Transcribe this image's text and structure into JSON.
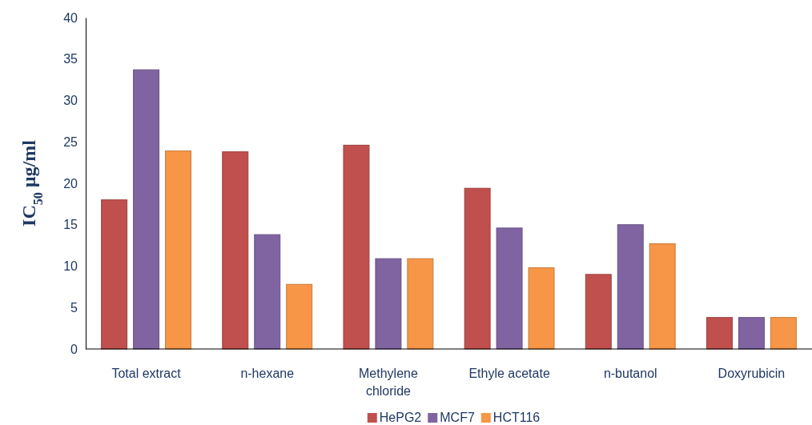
{
  "chart_data": {
    "type": "bar",
    "ylabel": "IC$_{50}$ µg/ml",
    "categories": [
      "Total extract",
      "n-hexane",
      "Methylene chloride",
      "Ethyle acetate",
      "n-butanol",
      "Doxyrubicin"
    ],
    "series": [
      {
        "name": "HePG2",
        "color": "#c0504d",
        "values": [
          18,
          23.8,
          24.6,
          19.4,
          9,
          3.8
        ]
      },
      {
        "name": "MCF7",
        "color": "#8064a2",
        "values": [
          33.7,
          13.8,
          10.9,
          14.6,
          15,
          3.8
        ]
      },
      {
        "name": "HCT116",
        "color": "#f79646",
        "values": [
          23.9,
          7.8,
          10.9,
          9.8,
          12.7,
          3.8
        ]
      }
    ],
    "ylim": [
      0,
      40
    ],
    "yticks": [
      0,
      5,
      10,
      15,
      20,
      25,
      30,
      35,
      40
    ],
    "grid": false,
    "legend": "bottom"
  }
}
